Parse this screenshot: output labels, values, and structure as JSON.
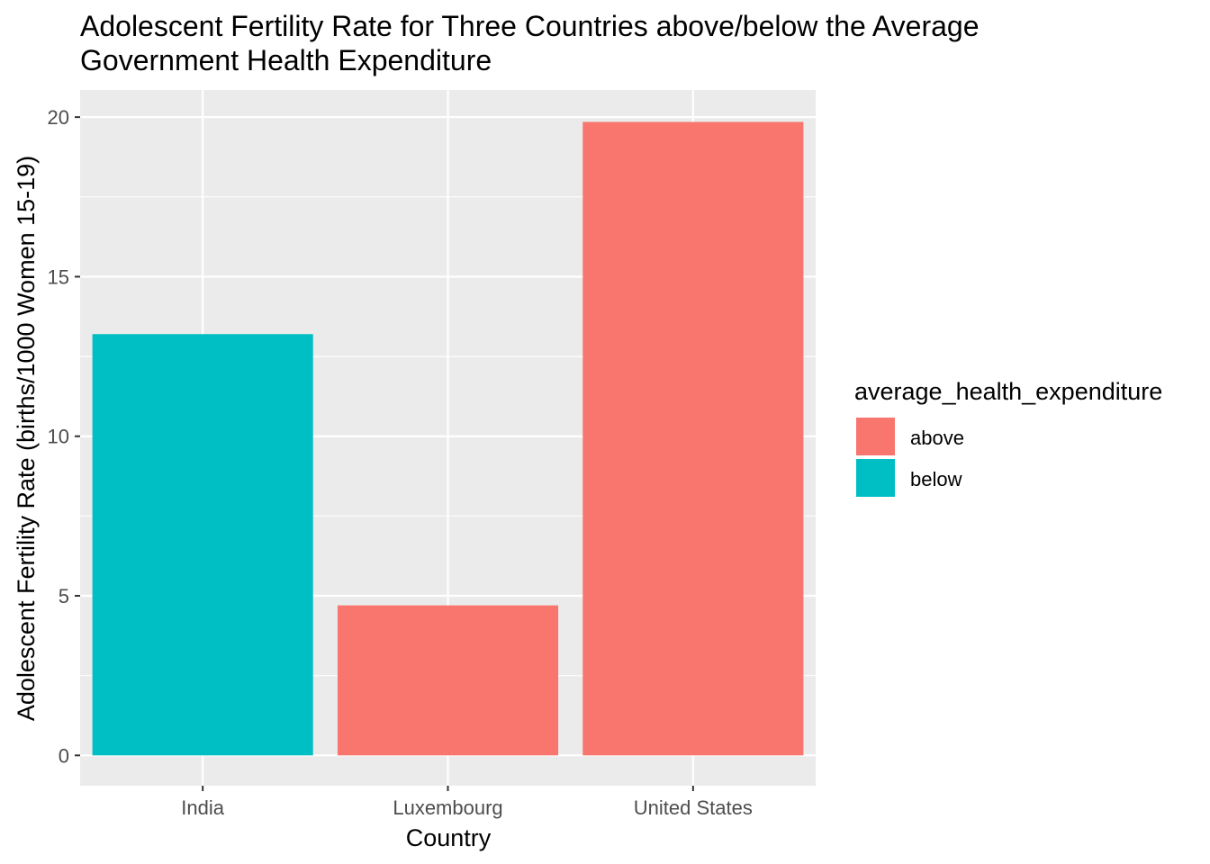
{
  "chart_data": {
    "type": "bar",
    "title_lines": [
      "Adolescent Fertility Rate for Three Countries above/below the Average",
      "Government Health Expenditure"
    ],
    "xlabel": "Country",
    "ylabel": "Adolescent Fertility Rate (births/1000 Women 15-19)",
    "categories": [
      "India",
      "Luxembourg",
      "United States"
    ],
    "values": [
      13.2,
      4.7,
      19.85
    ],
    "groups": [
      "below",
      "above",
      "above"
    ],
    "ylim": [
      -0.95,
      20.85
    ],
    "yticks": [
      0,
      5,
      10,
      15,
      20
    ],
    "ytick_labels": [
      "0",
      "5",
      "10",
      "15",
      "20"
    ],
    "grid": true,
    "legend": {
      "title": "average_health_expenditure",
      "placement": "right",
      "entries": [
        {
          "label": "above",
          "color": "#F8766D"
        },
        {
          "label": "below",
          "color": "#00BFC4"
        }
      ]
    },
    "colors": {
      "above": "#F8766D",
      "below": "#00BFC4",
      "panel_background": "#EBEBEB",
      "grid_line": "#FFFFFF",
      "tick_text": "#4D4D4D",
      "tick_mark": "#333333"
    }
  }
}
